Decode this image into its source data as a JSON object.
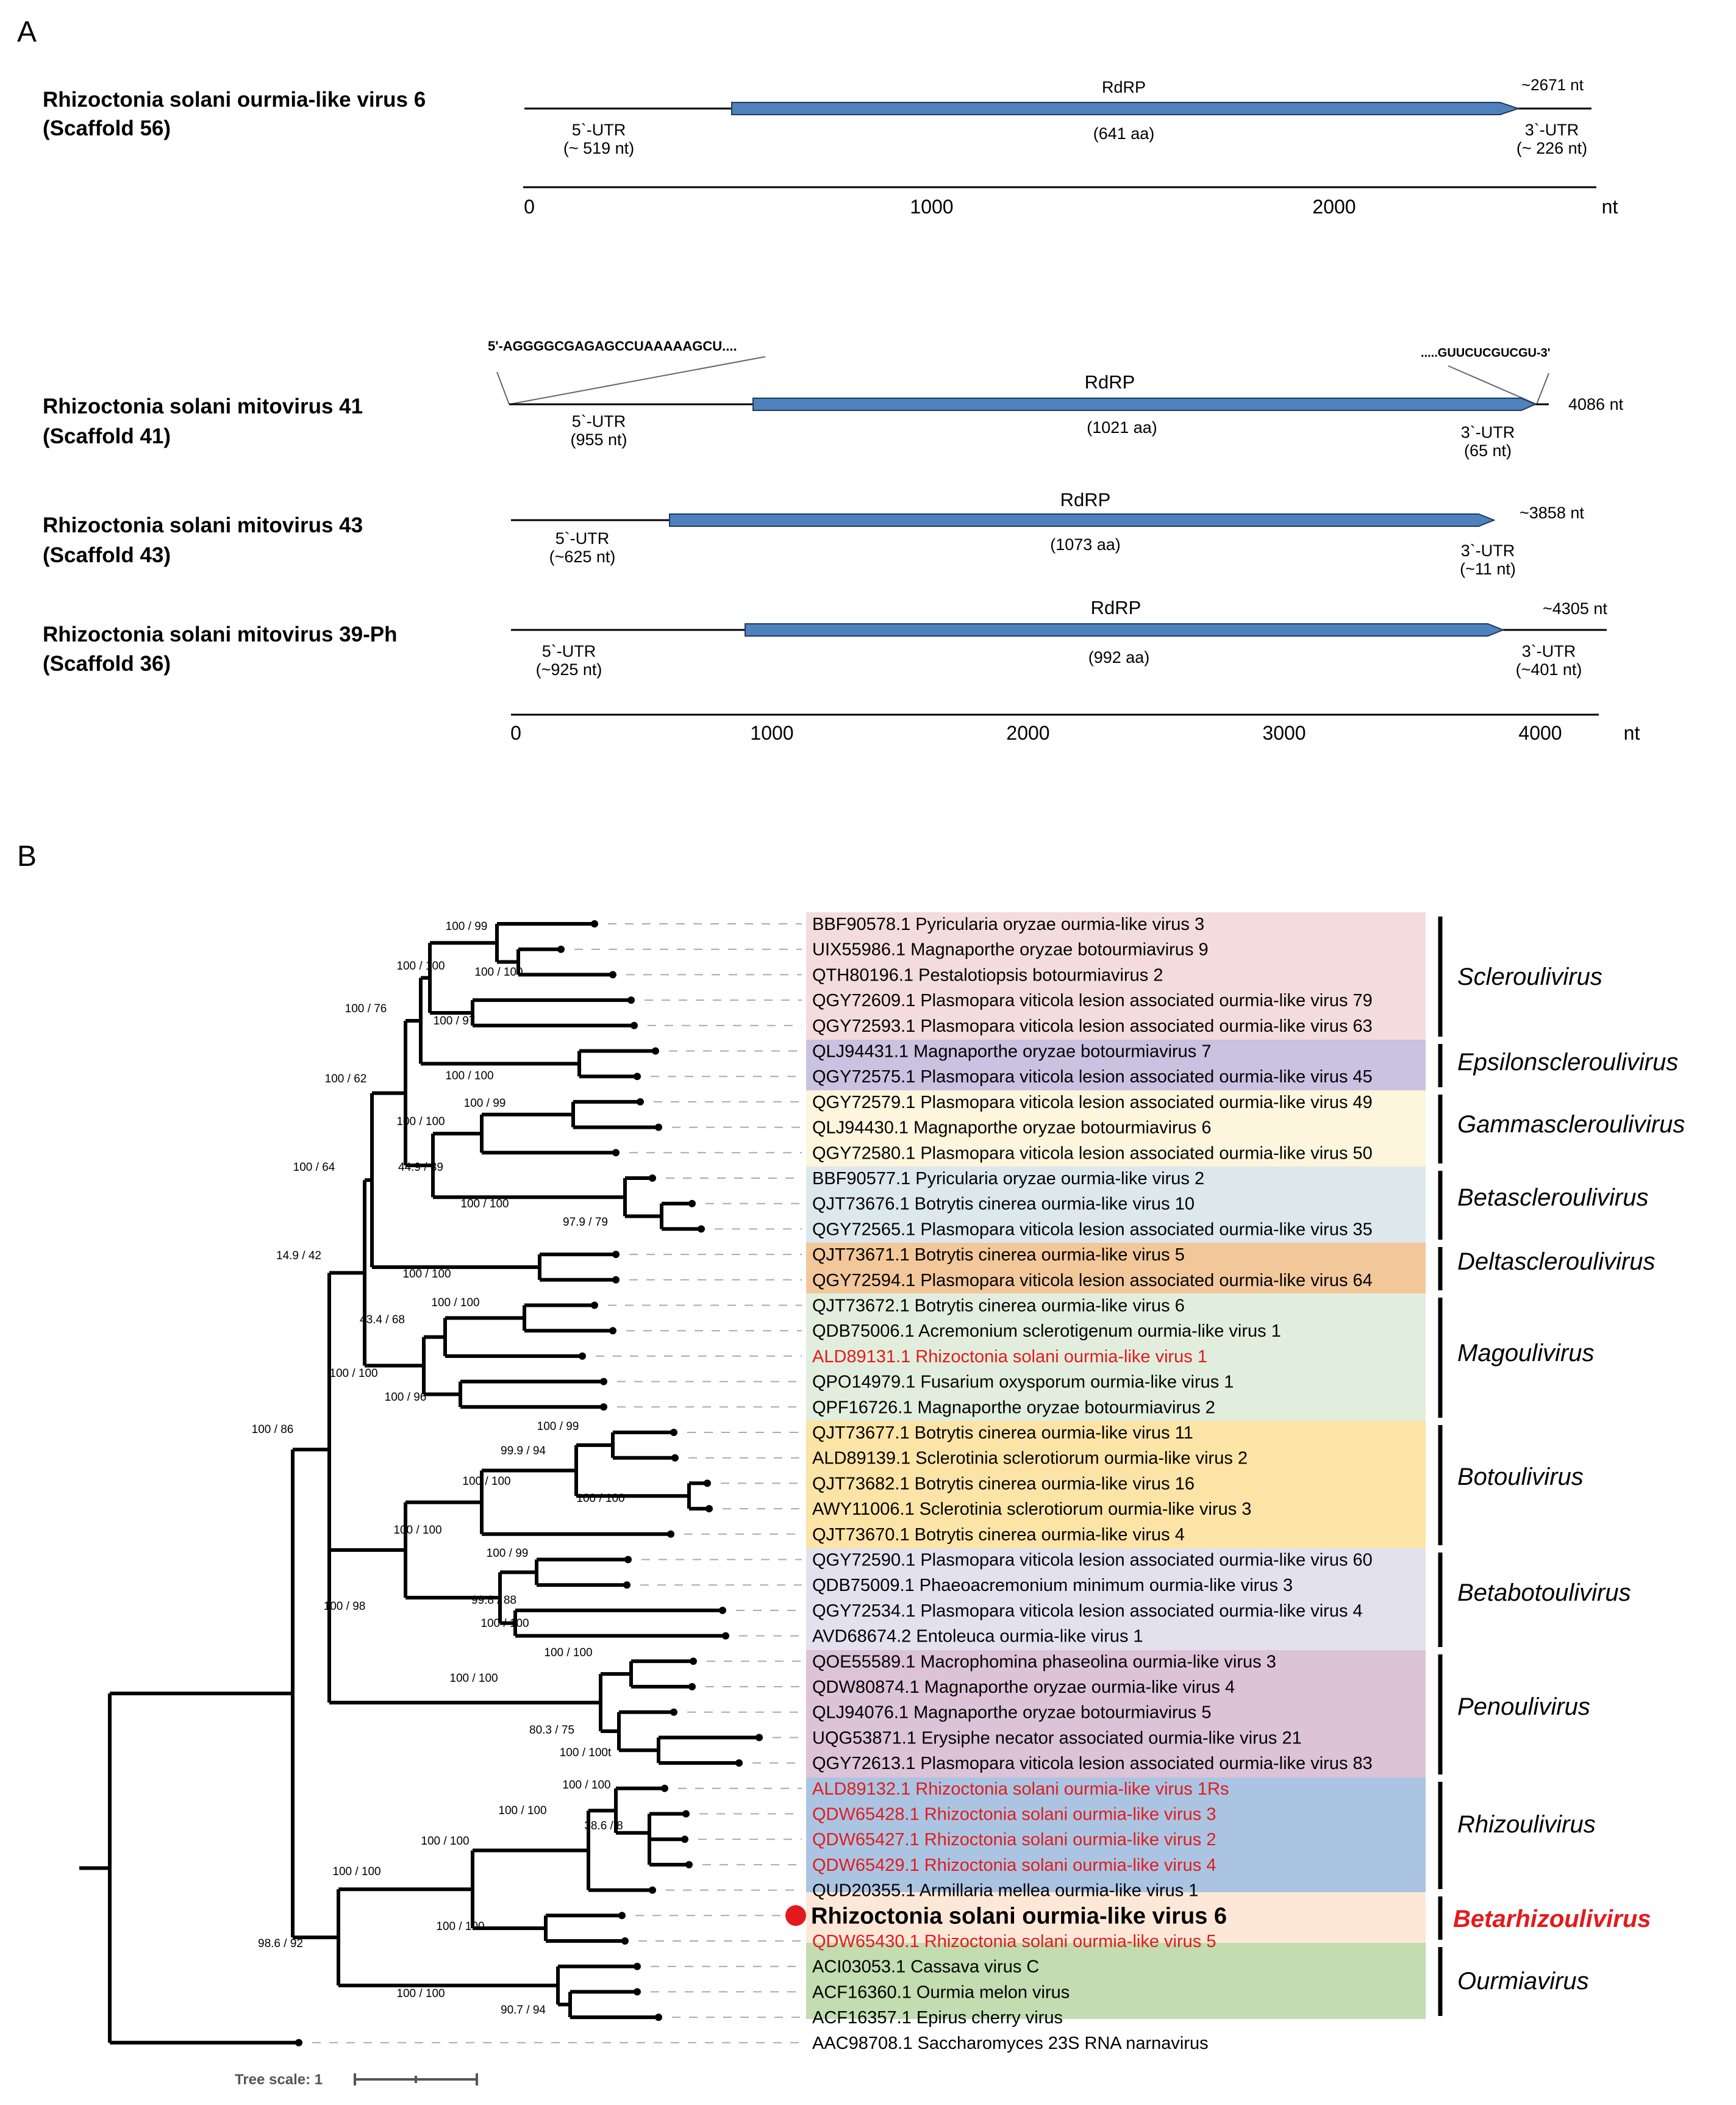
{
  "panels": {
    "a": "A",
    "b": "B"
  },
  "genomes": {
    "top": {
      "name": "Rhizoctonia solani ourmia-like virus 6",
      "scaffold": "(Scaffold 56)",
      "rdrp": "RdRP",
      "aa": "(641 aa)",
      "utr5": "5`-UTR",
      "utr5_len": "(~ 519 nt)",
      "utr3": "3`-UTR",
      "utr3_len": "(~ 226 nt)",
      "total": "~2671 nt"
    },
    "mito41": {
      "name": "Rhizoctonia solani mitovirus 41",
      "scaffold": "(Scaffold 41)",
      "seq5": "5'-AGGGGCGAGAGCCUAAAAAGCU....",
      "seq3": ".....GUUCUCGUCGU-3'",
      "rdrp": "RdRP",
      "aa": "(1021 aa)",
      "utr5": "5`-UTR",
      "utr5_len": "(955 nt)",
      "utr3": "3`-UTR",
      "utr3_len": "(65 nt)",
      "total": "4086 nt"
    },
    "mito43": {
      "name": "Rhizoctonia solani mitovirus 43",
      "scaffold": "(Scaffold 43)",
      "rdrp": "RdRP",
      "aa": "(1073 aa)",
      "utr5": "5`-UTR",
      "utr5_len": "(~625 nt)",
      "utr3": "3`-UTR",
      "utr3_len": "(~11 nt)",
      "total": "~3858 nt"
    },
    "mito39": {
      "name": "Rhizoctonia solani mitovirus 39-Ph",
      "scaffold": "(Scaffold 36)",
      "rdrp": "RdRP",
      "aa": "(992 aa)",
      "utr5": "5`-UTR",
      "utr5_len": "(~925 nt)",
      "utr3": "3`-UTR",
      "utr3_len": "(~401 nt)",
      "total": "~4305 nt"
    }
  },
  "axes": {
    "top_ticks": [
      "0",
      "1000",
      "2000"
    ],
    "bottom_ticks": [
      "0",
      "1000",
      "2000",
      "3000",
      "4000"
    ],
    "unit": "nt"
  },
  "tree": {
    "leaves": [
      "BBF90578.1 Pyricularia oryzae ourmia-like virus 3",
      "UIX55986.1 Magnaporthe oryzae botourmiavirus 9",
      "QTH80196.1 Pestalotiopsis botourmiavirus 2",
      "QGY72609.1 Plasmopara viticola lesion associated ourmia-like virus 79",
      "QGY72593.1 Plasmopara viticola lesion associated ourmia-like virus 63",
      "QLJ94431.1 Magnaporthe oryzae botourmiavirus 7",
      "QGY72575.1 Plasmopara viticola lesion associated ourmia-like virus 45",
      "QGY72579.1 Plasmopara viticola lesion associated ourmia-like virus 49",
      "QLJ94430.1 Magnaporthe oryzae botourmiavirus 6",
      "QGY72580.1 Plasmopara viticola lesion associated ourmia-like virus 50",
      "BBF90577.1 Pyricularia oryzae ourmia-like virus 2",
      "QJT73676.1 Botrytis cinerea ourmia-like virus 10",
      "QGY72565.1 Plasmopara viticola lesion associated ourmia-like virus 35",
      "QJT73671.1 Botrytis cinerea ourmia-like virus 5",
      "QGY72594.1 Plasmopara viticola lesion associated ourmia-like virus 64",
      "QJT73672.1 Botrytis cinerea ourmia-like virus 6",
      "QDB75006.1 Acremonium sclerotigenum ourmia-like virus 1",
      "ALD89131.1 Rhizoctonia solani ourmia-like virus 1",
      "QPO14979.1 Fusarium oxysporum ourmia-like virus 1",
      "QPF16726.1 Magnaporthe oryzae botourmiavirus 2",
      "QJT73677.1 Botrytis cinerea ourmia-like virus 11",
      "ALD89139.1 Sclerotinia sclerotiorum ourmia-like virus 2",
      "QJT73682.1 Botrytis cinerea ourmia-like virus 16",
      "AWY11006.1 Sclerotinia sclerotiorum ourmia-like virus 3",
      "QJT73670.1 Botrytis cinerea ourmia-like virus 4",
      "QGY72590.1 Plasmopara viticola lesion associated ourmia-like virus 60",
      "QDB75009.1 Phaeoacremonium minimum ourmia-like virus 3",
      "QGY72534.1 Plasmopara viticola lesion associated ourmia-like virus 4",
      "AVD68674.2 Entoleuca ourmia-like virus 1",
      "QOE55589.1 Macrophomina phaseolina ourmia-like virus 3",
      "QDW80874.1 Magnaporthe oryzae ourmia-like virus 4",
      "QLJ94076.1 Magnaporthe oryzae botourmiavirus 5",
      "UQG53871.1 Erysiphe necator associated ourmia-like virus 21",
      "QGY72613.1 Plasmopara viticola lesion associated ourmia-like virus 83",
      "ALD89132.1 Rhizoctonia solani ourmia-like virus 1Rs",
      "QDW65428.1 Rhizoctonia solani ourmia-like virus 3",
      "QDW65427.1 Rhizoctonia solani ourmia-like virus 2",
      "QDW65429.1 Rhizoctonia solani ourmia-like virus 4",
      "QUD20355.1 Armillaria mellea ourmia-like virus 1",
      "Rhizoctonia solani ourmia-like virus 6",
      "QDW65430.1 Rhizoctonia solani ourmia-like virus 5",
      "ACI03053.1 Cassava virus C",
      "ACF16360.1 Ourmia melon virus",
      "ACF16357.1 Epirus cherry virus",
      "AAC98708.1 Saccharomyces 23S RNA narnavirus"
    ],
    "genera": [
      "Scleroulivirus",
      "Epsilonscleroulivirus",
      "Gammascleroulivirus",
      "Betascleroulivirus",
      "Deltascleroulivirus",
      "Magoulivirus",
      "Botoulivirus",
      "Betabotoulivirus",
      "Penoulivirus",
      "Rhizoulivirus",
      "Betarhizoulivirus",
      "Ourmiavirus"
    ],
    "supports": {
      "n1": "100 / 99",
      "n2": "100 / 100",
      "n3": "100 / 100",
      "n4": "100 / 97",
      "n5": "100 / 76",
      "n6": "100 / 100",
      "n7": "100 / 62",
      "n8": "100 / 99",
      "n9": "100 / 100",
      "n10": "44.9 / 39",
      "n11": "100 / 100",
      "n12": "97.9 / 79",
      "n13": "100 / 64",
      "n14": "100 / 100",
      "n15": "14.9 / 42",
      "n16": "100 / 100",
      "n17": "43.4 / 68",
      "n18": "100 / 100",
      "n19": "100 / 96",
      "n20": "100 / 86",
      "n21": "100 / 99",
      "n22": "99.9 / 94",
      "n23": "100 / 100",
      "n24": "100 / 100",
      "n25": "100 / 100",
      "n26": "100 / 99",
      "n27": "99.8 / 88",
      "n28": "100 / 100",
      "n29": "100 / 98",
      "n30": "100 / 100",
      "n31": "100 / 100",
      "n32": "80.3 / 75",
      "n33": "100 / 100t",
      "n34": "100 / 100",
      "n35": "100 / 100",
      "n36": "38.6 / 8",
      "n37": "100 / 100",
      "n38": "100 / 100",
      "n39": "100 / 100",
      "n40": "98.6 / 92",
      "n41": "100 / 100",
      "n42": "90.7 / 94"
    },
    "scale_label": "Tree scale: 1"
  },
  "colors": {
    "rdrp_fill": "#4f81bd",
    "highlight_red": "#e31a1c",
    "scleroulivirus": "#f4dcdc",
    "epsilonscleroulivirus": "#c9c2e0",
    "gammascleroulivirus": "#fdf5dc",
    "betascleroulivirus": "#dde8ec",
    "deltascleroulivirus": "#f2c79a",
    "magoulivirus": "#e2eedd",
    "botoulivirus": "#fbe4a6",
    "betabotoulivirus": "#e4e1ef",
    "penoulivirus": "#dcc3d8",
    "rhizoulivirus": "#abc4e2",
    "betarhizoulivirus": "#fde8d8",
    "ourmiavirus": "#c3dcb0"
  }
}
